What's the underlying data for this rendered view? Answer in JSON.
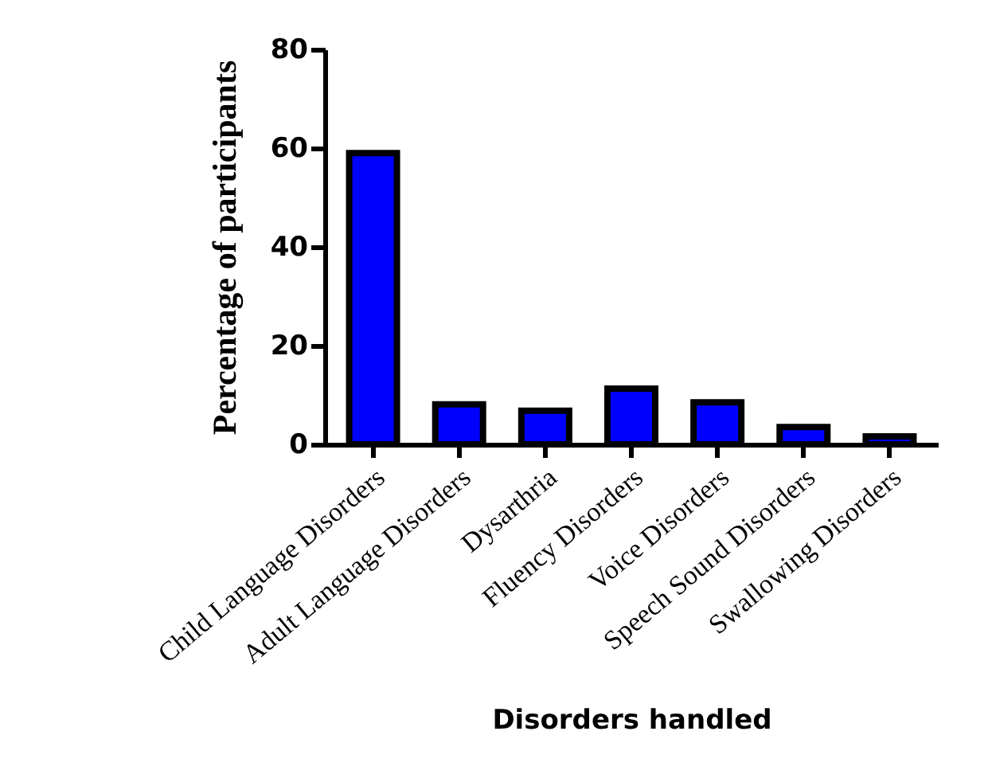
{
  "chart_data": {
    "type": "bar",
    "xlabel": "Disorders handled",
    "ylabel": "Percentage of participants",
    "categories": [
      "Child Language Disorders",
      "Adult Language Disorders",
      "Dysarthria",
      "Fluency Disorders",
      "Voice  Disorders",
      "Speech Sound Disorders",
      "Swallowing Disorders"
    ],
    "values": [
      59,
      8.1,
      6.8,
      11.3,
      8.5,
      3.5,
      1.6
    ],
    "color": "#0000ff",
    "ylim": [
      0,
      80
    ],
    "yticks": [
      0,
      20,
      40,
      60,
      80
    ],
    "grid": false
  }
}
